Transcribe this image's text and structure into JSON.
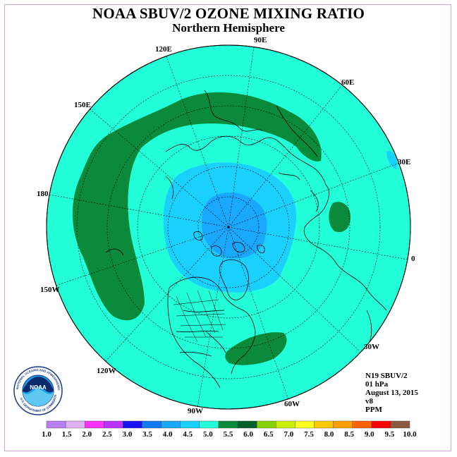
{
  "title": "NOAA SBUV/2 OZONE MIXING RATIO",
  "subtitle": "Northern Hemisphere",
  "longitude_labels": {
    "e90": "90E",
    "e60": "60E",
    "e30": "30E",
    "zero": "0",
    "w30": "30W",
    "w60": "60W",
    "w90": "90W",
    "w120": "120W",
    "w150": "150W",
    "d180": "180",
    "e150": "150E",
    "e120": "120E"
  },
  "info": {
    "instrument": "N19 SBUV/2",
    "level": "01 hPa",
    "date": "August 13, 2015",
    "version": "v8",
    "units": "PPM"
  },
  "logo": {
    "name": "NOAA",
    "ring_text": "NATIONAL OCEANIC AND ATMOSPHERIC ADMINISTRATION",
    "ring_text_bottom": "U.S. DEPARTMENT OF COMMERCE"
  },
  "colorbar": {
    "labels": [
      "1.0",
      "1.5",
      "2.0",
      "2.5",
      "3.0",
      "3.5",
      "4.0",
      "4.5",
      "5.0",
      "5.5",
      "6.0",
      "6.5",
      "7.0",
      "7.5",
      "8.0",
      "8.5",
      "9.0",
      "9.5",
      "10.0"
    ],
    "colors": [
      "#b87ff0",
      "#ddb0f0",
      "#ff33ff",
      "#ba33ff",
      "#1a14f5",
      "#1478f0",
      "#1aa8ff",
      "#1ad0ff",
      "#22ffd8",
      "#0a8a3a",
      "#006028",
      "#88d000",
      "#c8f000",
      "#ffff20",
      "#ffc800",
      "#ffa000",
      "#ff6400",
      "#ff0000",
      "#8c5a40"
    ]
  },
  "map": {
    "background_color": "#22ffd8",
    "levels": {
      "outer": "4.5-5.0 ppm",
      "ring": "4.0-4.5 ppm",
      "core": "3.5-4.0 ppm",
      "high": "5.0-5.5 ppm"
    }
  }
}
